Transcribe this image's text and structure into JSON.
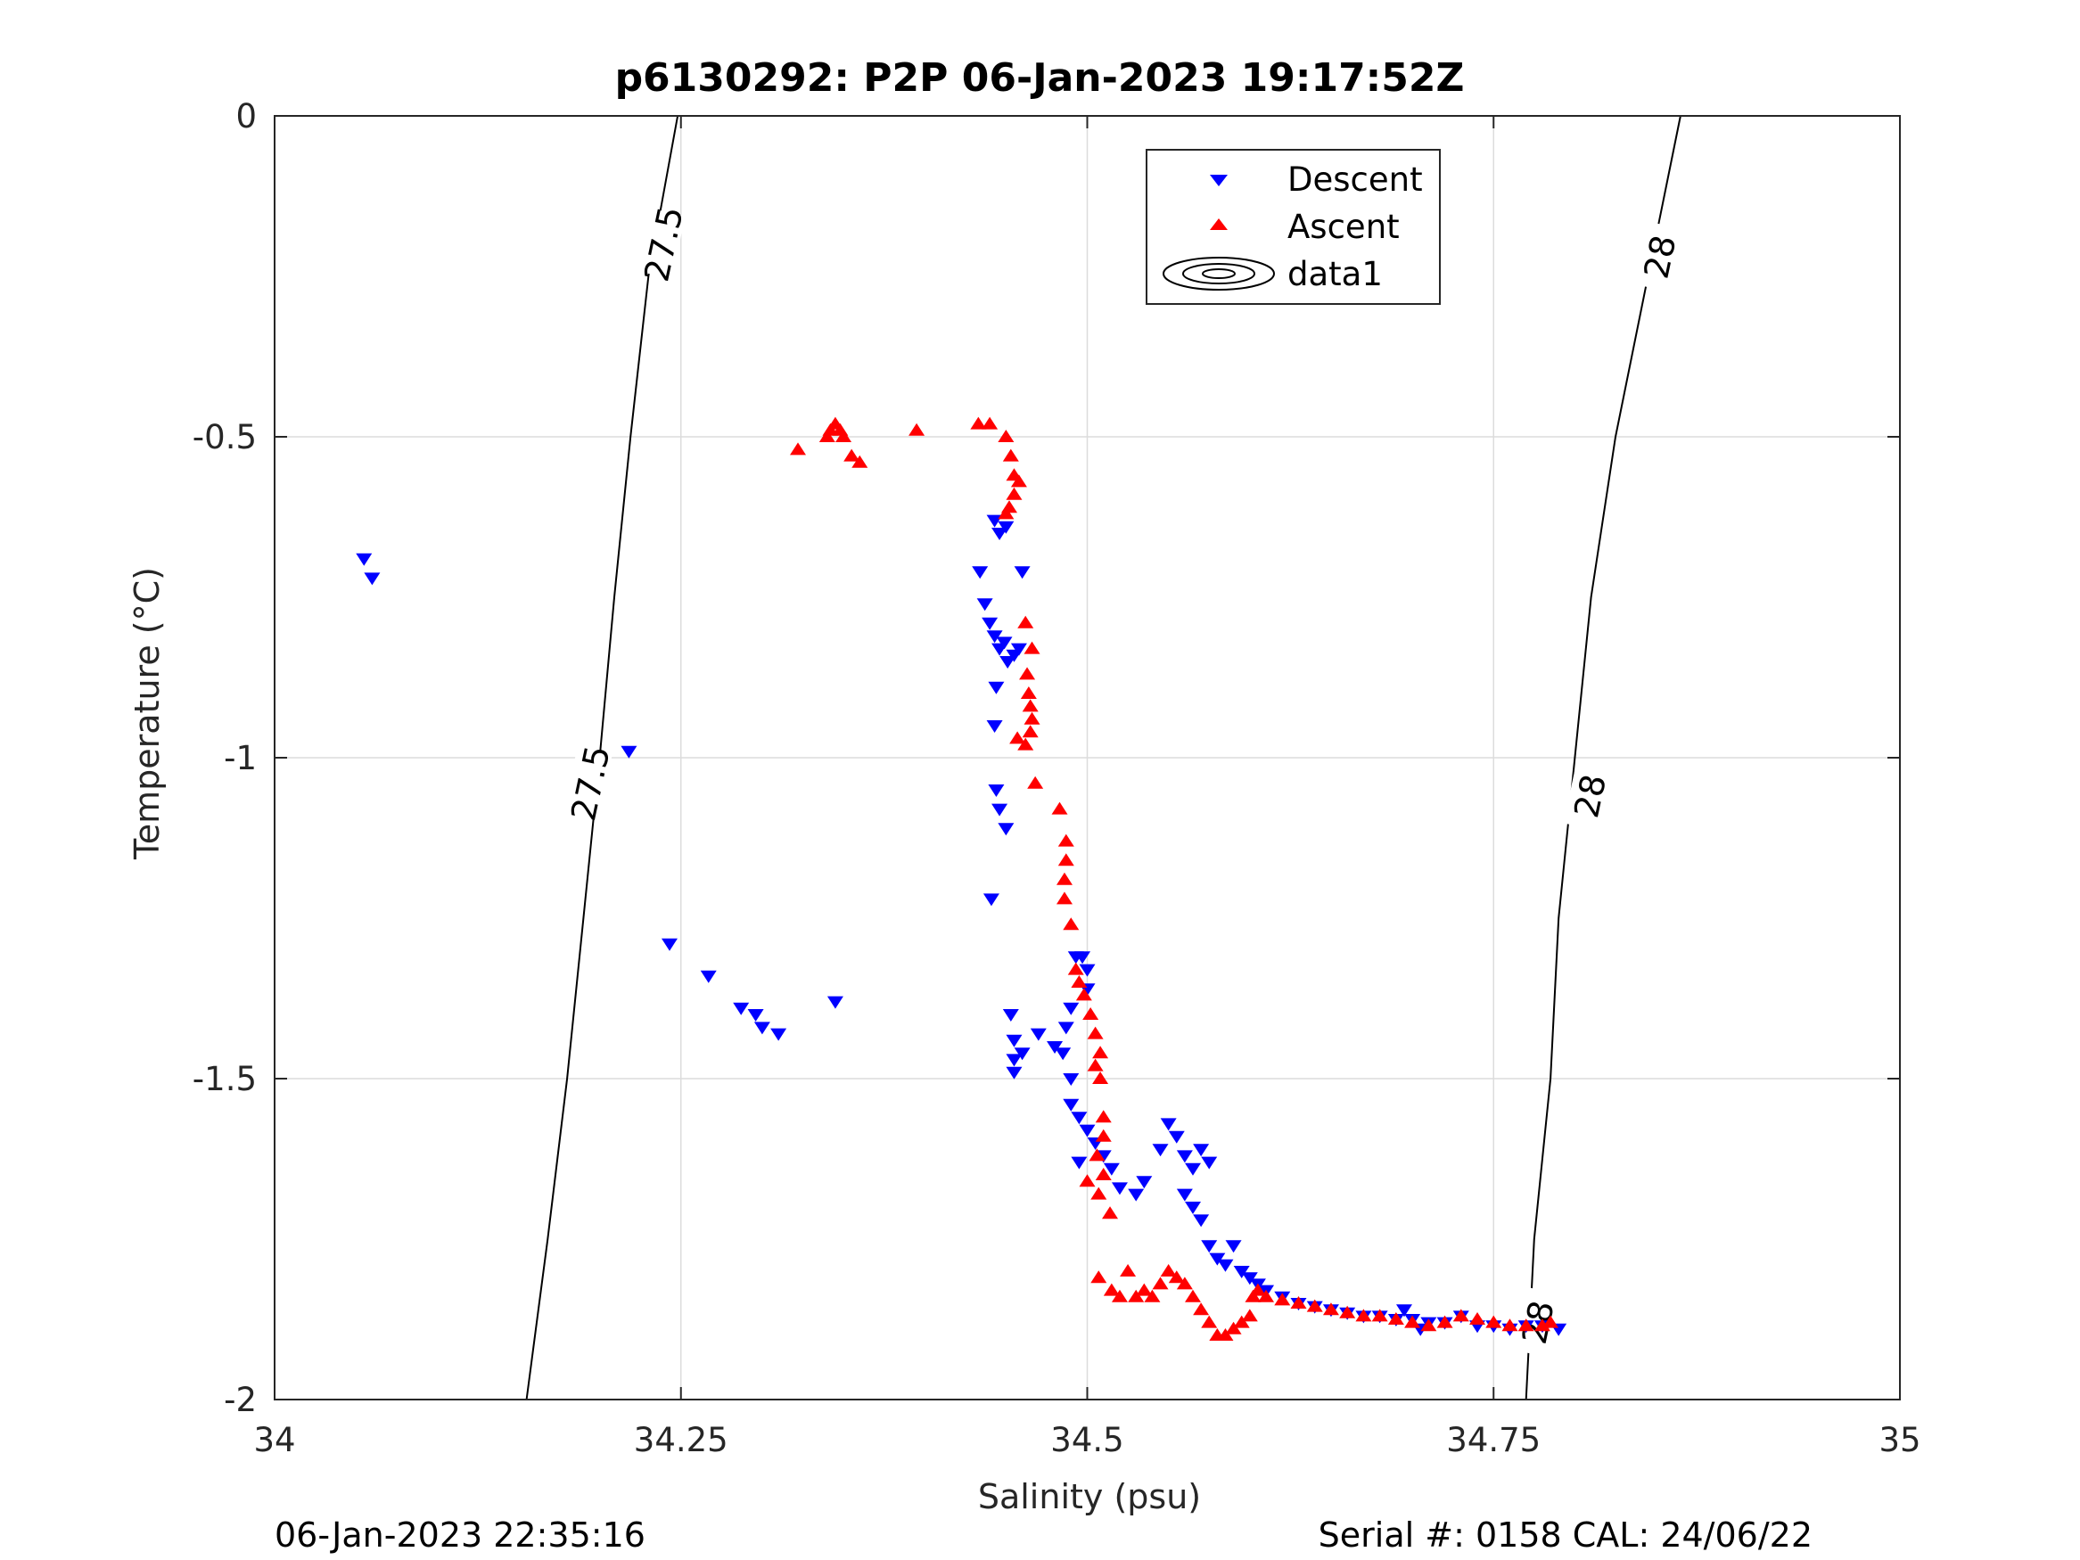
{
  "chart_data": {
    "type": "scatter",
    "title": "p6130292: P2P 06-Jan-2023 19:17:52Z",
    "xlabel": "Salinity (psu)",
    "ylabel": "Temperature (°C)",
    "xlim": [
      34,
      35
    ],
    "ylim": [
      -2,
      0
    ],
    "xticks": [
      34,
      34.25,
      34.5,
      34.75,
      35
    ],
    "xtick_labels": [
      "34",
      "34.25",
      "34.5",
      "34.75",
      "35"
    ],
    "yticks": [
      0,
      -0.5,
      -1,
      -1.5,
      -2
    ],
    "ytick_labels": [
      "0",
      "-0.5",
      "-1",
      "-1.5",
      "-2"
    ],
    "grid": true,
    "legend_position": "top-center",
    "colors": {
      "descent": "#0000ff",
      "ascent": "#ff0000",
      "contour": "#000000",
      "grid": "#dcdcdc"
    },
    "series": [
      {
        "name": "Descent",
        "marker": "triangle-down",
        "color": "#0000ff",
        "points": [
          [
            34.055,
            -0.69
          ],
          [
            34.06,
            -0.72
          ],
          [
            34.218,
            -0.99
          ],
          [
            34.243,
            -1.29
          ],
          [
            34.267,
            -1.34
          ],
          [
            34.287,
            -1.39
          ],
          [
            34.296,
            -1.4
          ],
          [
            34.3,
            -1.42
          ],
          [
            34.31,
            -1.43
          ],
          [
            34.345,
            -1.38
          ],
          [
            34.434,
            -0.71
          ],
          [
            34.437,
            -0.76
          ],
          [
            34.44,
            -0.79
          ],
          [
            34.443,
            -0.81
          ],
          [
            34.446,
            -0.83
          ],
          [
            34.449,
            -0.82
          ],
          [
            34.451,
            -0.85
          ],
          [
            34.455,
            -0.84
          ],
          [
            34.458,
            -0.83
          ],
          [
            34.444,
            -0.89
          ],
          [
            34.443,
            -0.95
          ],
          [
            34.444,
            -1.05
          ],
          [
            34.446,
            -1.08
          ],
          [
            34.45,
            -1.11
          ],
          [
            34.441,
            -1.22
          ],
          [
            34.443,
            -0.63
          ],
          [
            34.446,
            -0.65
          ],
          [
            34.45,
            -0.64
          ],
          [
            34.46,
            -0.71
          ],
          [
            34.453,
            -1.4
          ],
          [
            34.455,
            -1.44
          ],
          [
            34.455,
            -1.47
          ],
          [
            34.455,
            -1.49
          ],
          [
            34.46,
            -1.46
          ],
          [
            34.47,
            -1.43
          ],
          [
            34.48,
            -1.45
          ],
          [
            34.487,
            -1.42
          ],
          [
            34.49,
            -1.39
          ],
          [
            34.485,
            -1.46
          ],
          [
            34.49,
            -1.5
          ],
          [
            34.493,
            -1.31
          ],
          [
            34.497,
            -1.31
          ],
          [
            34.5,
            -1.33
          ],
          [
            34.5,
            -1.36
          ],
          [
            34.49,
            -1.54
          ],
          [
            34.495,
            -1.56
          ],
          [
            34.5,
            -1.58
          ],
          [
            34.505,
            -1.6
          ],
          [
            34.51,
            -1.62
          ],
          [
            34.495,
            -1.63
          ],
          [
            34.515,
            -1.64
          ],
          [
            34.52,
            -1.67
          ],
          [
            34.53,
            -1.68
          ],
          [
            34.535,
            -1.66
          ],
          [
            34.545,
            -1.61
          ],
          [
            34.55,
            -1.57
          ],
          [
            34.555,
            -1.59
          ],
          [
            34.56,
            -1.62
          ],
          [
            34.565,
            -1.64
          ],
          [
            34.57,
            -1.61
          ],
          [
            34.575,
            -1.63
          ],
          [
            34.56,
            -1.68
          ],
          [
            34.565,
            -1.7
          ],
          [
            34.57,
            -1.72
          ],
          [
            34.575,
            -1.76
          ],
          [
            34.58,
            -1.78
          ],
          [
            34.585,
            -1.79
          ],
          [
            34.59,
            -1.76
          ],
          [
            34.595,
            -1.8
          ],
          [
            34.6,
            -1.81
          ],
          [
            34.605,
            -1.82
          ],
          [
            34.61,
            -1.83
          ],
          [
            34.62,
            -1.84
          ],
          [
            34.63,
            -1.85
          ],
          [
            34.64,
            -1.855
          ],
          [
            34.65,
            -1.86
          ],
          [
            34.66,
            -1.865
          ],
          [
            34.67,
            -1.87
          ],
          [
            34.68,
            -1.87
          ],
          [
            34.69,
            -1.875
          ],
          [
            34.695,
            -1.86
          ],
          [
            34.7,
            -1.875
          ],
          [
            34.705,
            -1.89
          ],
          [
            34.71,
            -1.88
          ],
          [
            34.72,
            -1.88
          ],
          [
            34.73,
            -1.87
          ],
          [
            34.74,
            -1.885
          ],
          [
            34.75,
            -1.885
          ],
          [
            34.76,
            -1.89
          ],
          [
            34.77,
            -1.885
          ],
          [
            34.78,
            -1.885
          ],
          [
            34.79,
            -1.89
          ]
        ]
      },
      {
        "name": "Ascent",
        "marker": "triangle-up",
        "color": "#ff0000",
        "points": [
          [
            34.322,
            -0.52
          ],
          [
            34.34,
            -0.5
          ],
          [
            34.342,
            -0.49
          ],
          [
            34.345,
            -0.48
          ],
          [
            34.348,
            -0.49
          ],
          [
            34.35,
            -0.5
          ],
          [
            34.355,
            -0.53
          ],
          [
            34.36,
            -0.54
          ],
          [
            34.395,
            -0.49
          ],
          [
            34.433,
            -0.48
          ],
          [
            34.44,
            -0.48
          ],
          [
            34.45,
            -0.5
          ],
          [
            34.453,
            -0.53
          ],
          [
            34.455,
            -0.56
          ],
          [
            34.458,
            -0.57
          ],
          [
            34.455,
            -0.59
          ],
          [
            34.452,
            -0.61
          ],
          [
            34.45,
            -0.62
          ],
          [
            34.462,
            -0.79
          ],
          [
            34.466,
            -0.83
          ],
          [
            34.463,
            -0.87
          ],
          [
            34.464,
            -0.9
          ],
          [
            34.465,
            -0.92
          ],
          [
            34.466,
            -0.94
          ],
          [
            34.465,
            -0.96
          ],
          [
            34.462,
            -0.98
          ],
          [
            34.457,
            -0.97
          ],
          [
            34.468,
            -1.04
          ],
          [
            34.483,
            -1.08
          ],
          [
            34.487,
            -1.13
          ],
          [
            34.487,
            -1.16
          ],
          [
            34.486,
            -1.19
          ],
          [
            34.486,
            -1.22
          ],
          [
            34.49,
            -1.26
          ],
          [
            34.493,
            -1.33
          ],
          [
            34.495,
            -1.35
          ],
          [
            34.498,
            -1.37
          ],
          [
            34.502,
            -1.4
          ],
          [
            34.505,
            -1.43
          ],
          [
            34.508,
            -1.46
          ],
          [
            34.505,
            -1.48
          ],
          [
            34.508,
            -1.5
          ],
          [
            34.51,
            -1.56
          ],
          [
            34.51,
            -1.59
          ],
          [
            34.506,
            -1.62
          ],
          [
            34.51,
            -1.65
          ],
          [
            34.5,
            -1.66
          ],
          [
            34.507,
            -1.68
          ],
          [
            34.514,
            -1.71
          ],
          [
            34.507,
            -1.81
          ],
          [
            34.515,
            -1.83
          ],
          [
            34.52,
            -1.84
          ],
          [
            34.525,
            -1.8
          ],
          [
            34.53,
            -1.84
          ],
          [
            34.535,
            -1.83
          ],
          [
            34.54,
            -1.84
          ],
          [
            34.545,
            -1.82
          ],
          [
            34.55,
            -1.8
          ],
          [
            34.555,
            -1.81
          ],
          [
            34.56,
            -1.82
          ],
          [
            34.565,
            -1.84
          ],
          [
            34.57,
            -1.86
          ],
          [
            34.575,
            -1.88
          ],
          [
            34.58,
            -1.9
          ],
          [
            34.585,
            -1.9
          ],
          [
            34.59,
            -1.89
          ],
          [
            34.595,
            -1.88
          ],
          [
            34.6,
            -1.87
          ],
          [
            34.602,
            -1.84
          ],
          [
            34.605,
            -1.83
          ],
          [
            34.61,
            -1.84
          ],
          [
            34.62,
            -1.845
          ],
          [
            34.63,
            -1.85
          ],
          [
            34.64,
            -1.855
          ],
          [
            34.65,
            -1.86
          ],
          [
            34.66,
            -1.865
          ],
          [
            34.67,
            -1.87
          ],
          [
            34.68,
            -1.87
          ],
          [
            34.69,
            -1.875
          ],
          [
            34.7,
            -1.88
          ],
          [
            34.71,
            -1.885
          ],
          [
            34.72,
            -1.88
          ],
          [
            34.73,
            -1.87
          ],
          [
            34.74,
            -1.875
          ],
          [
            34.75,
            -1.88
          ],
          [
            34.76,
            -1.885
          ],
          [
            34.77,
            -1.885
          ],
          [
            34.78,
            -1.885
          ],
          [
            34.785,
            -1.88
          ]
        ]
      }
    ],
    "contours": [
      {
        "level": "27.5",
        "points": [
          [
            34.155,
            -2.0
          ],
          [
            34.168,
            -1.75
          ],
          [
            34.18,
            -1.5
          ],
          [
            34.19,
            -1.25
          ],
          [
            34.2,
            -1.0
          ],
          [
            34.209,
            -0.75
          ],
          [
            34.219,
            -0.5
          ],
          [
            34.23,
            -0.25
          ],
          [
            34.248,
            0.0
          ]
        ],
        "labels": [
          {
            "text": "27.5",
            "at": [
              34.195,
              -1.04
            ]
          },
          {
            "text": "27.5",
            "at": [
              34.24,
              -0.2
            ]
          }
        ]
      },
      {
        "level": "28",
        "points": [
          [
            34.77,
            -2.0
          ],
          [
            34.775,
            -1.75
          ],
          [
            34.785,
            -1.5
          ],
          [
            34.79,
            -1.25
          ],
          [
            34.8,
            -1.0
          ],
          [
            34.81,
            -0.75
          ],
          [
            34.825,
            -0.5
          ],
          [
            34.845,
            -0.25
          ],
          [
            34.865,
            0.0
          ]
        ],
        "labels": [
          {
            "text": "28",
            "at": [
              34.778,
              -1.88
            ]
          },
          {
            "text": "28",
            "at": [
              34.81,
              -1.06
            ]
          },
          {
            "text": "28",
            "at": [
              34.853,
              -0.22
            ]
          }
        ]
      }
    ],
    "legend": [
      {
        "label": "Descent",
        "marker": "triangle-down"
      },
      {
        "label": "Ascent",
        "marker": "triangle-up"
      },
      {
        "label": "data1",
        "marker": "contour"
      }
    ],
    "footer_left": "06-Jan-2023 22:35:16",
    "footer_right": "Serial #: 0158  CAL: 24/06/22"
  }
}
